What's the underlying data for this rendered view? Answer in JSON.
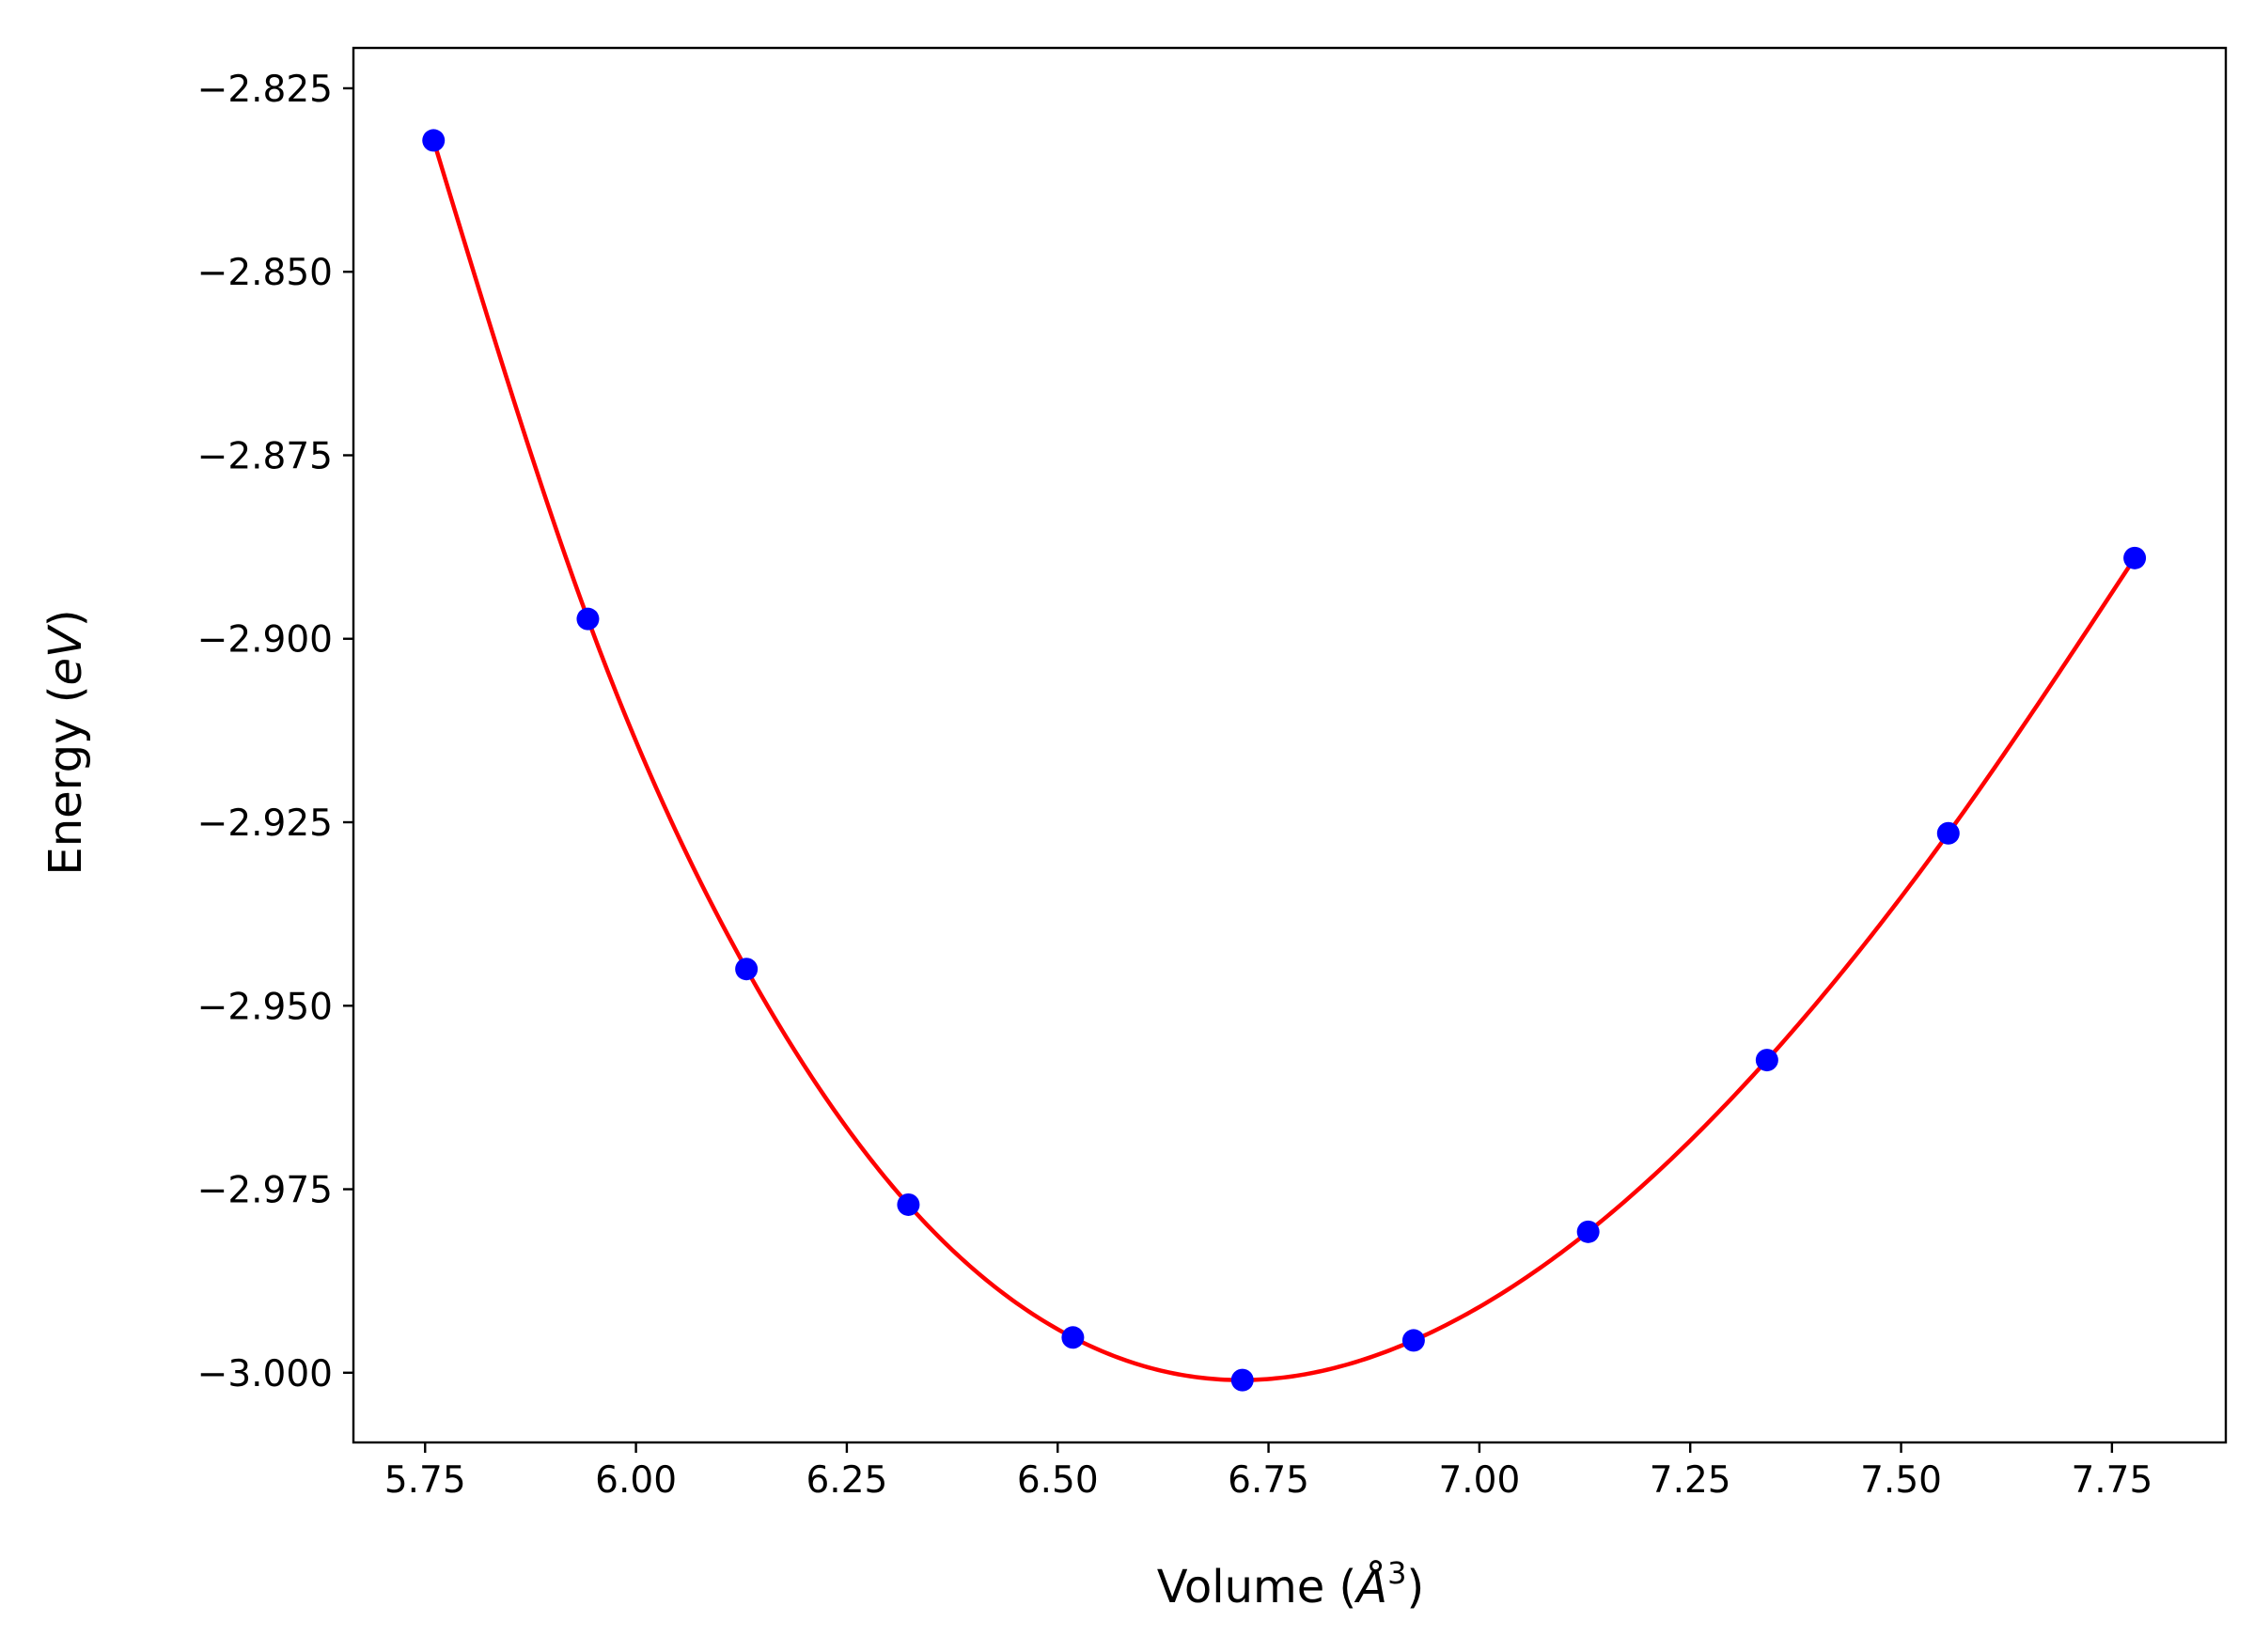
{
  "chart_data": {
    "type": "scatter",
    "title": "",
    "xlabel": {
      "prefix": "Volume (",
      "symbol": "Å",
      "exponent": "3",
      "suffix": ")"
    },
    "ylabel": {
      "prefix": "Energy (",
      "unit": "eV",
      "suffix": ")"
    },
    "xlim": [
      5.665,
      7.885
    ],
    "ylim": [
      -3.0095,
      -2.8195
    ],
    "xticks": [
      5.75,
      6.0,
      6.25,
      6.5,
      6.75,
      7.0,
      7.25,
      7.5,
      7.75
    ],
    "xtick_labels": [
      "5.75",
      "6.00",
      "6.25",
      "6.50",
      "6.75",
      "7.00",
      "7.25",
      "7.50",
      "7.75"
    ],
    "yticks": [
      -2.825,
      -2.85,
      -2.875,
      -2.9,
      -2.925,
      -2.95,
      -2.975,
      -3.0
    ],
    "ytick_labels": [
      "−2.825",
      "−2.850",
      "−2.875",
      "−2.900",
      "−2.925",
      "−2.950",
      "−2.975",
      "−3.000"
    ],
    "grid": false,
    "legend": "none",
    "series": [
      {
        "kind": "scatter",
        "color": "#0000ff",
        "x": [
          5.76,
          5.943,
          6.131,
          6.323,
          6.518,
          6.719,
          6.922,
          7.129,
          7.341,
          7.556,
          7.777
        ],
        "y": [
          -2.8321,
          -2.8973,
          -2.945,
          -2.9771,
          -2.9952,
          -3.001,
          -2.9956,
          -2.9808,
          -2.9574,
          -2.9265,
          -2.889
        ]
      },
      {
        "kind": "line",
        "color": "#ff0000",
        "fit": "natural-cubic-spline through data points",
        "x_range": [
          5.76,
          7.777
        ]
      }
    ]
  }
}
